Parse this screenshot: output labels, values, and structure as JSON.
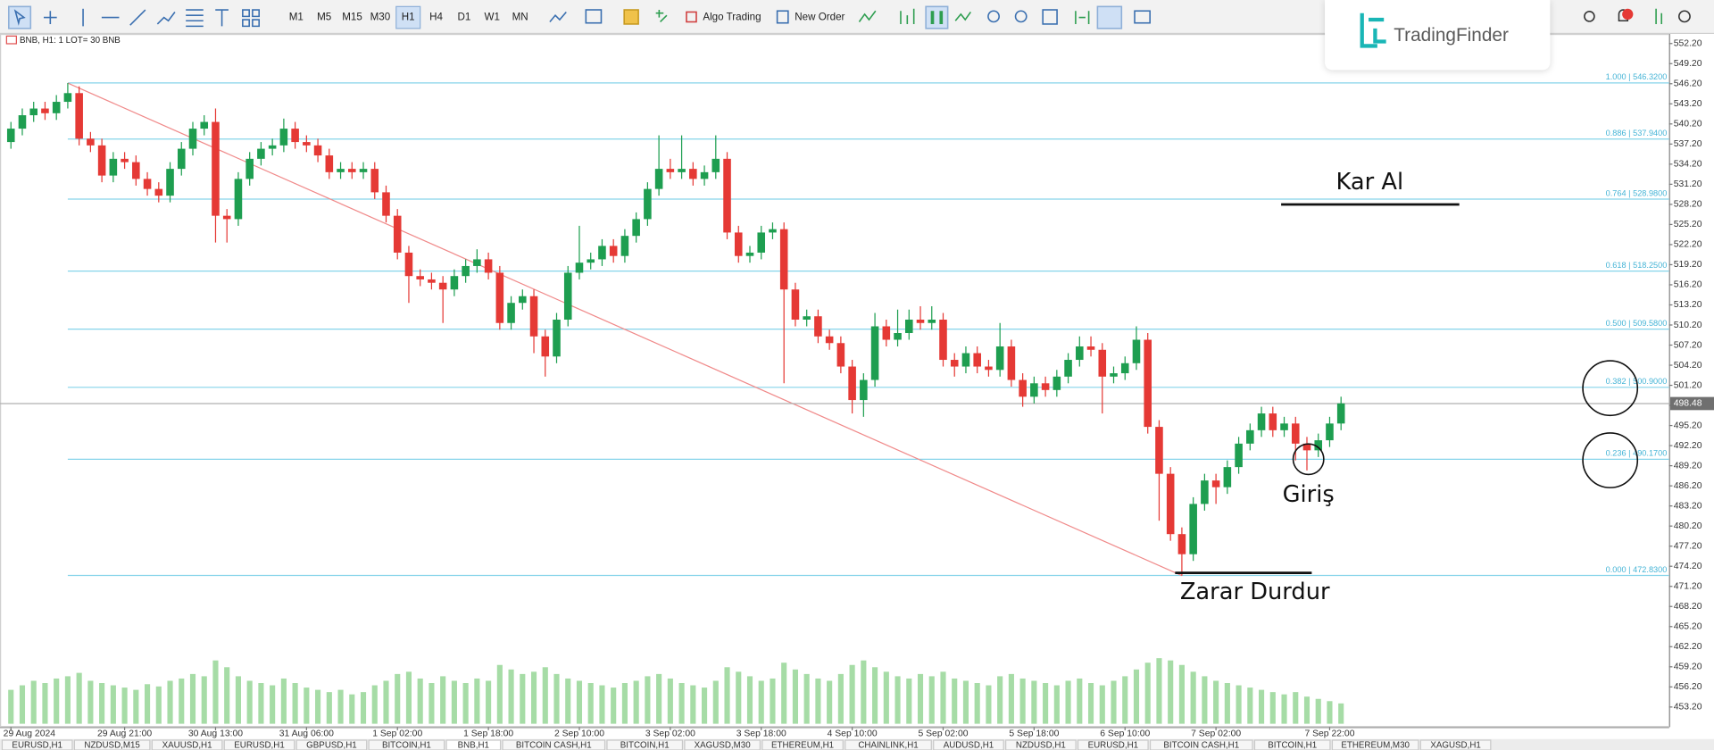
{
  "toolbar": {
    "timeframes": [
      "M1",
      "M5",
      "M15",
      "M30",
      "H1",
      "H4",
      "D1",
      "W1",
      "MN"
    ],
    "selected_timeframe": "H1",
    "algo_trading": "Algo Trading",
    "new_order": "New Order"
  },
  "logo": "TradingFinder",
  "tabs": [
    "EURUSD,H1",
    "NZDUSD,M15",
    "XAUUSD,H1",
    "EURUSD,H1",
    "GBPUSD,H1",
    "BITCOIN,H1",
    "BNB,H1",
    "BITCOIN CASH,H1",
    "BITCOIN,H1",
    "XAGUSD,M30",
    "ETHEREUM,H1",
    "CHAINLINK,H1",
    "AUDUSD,H1",
    "NZDUSD,H1",
    "EURUSD,H1",
    "BITCOIN CASH,H1",
    "BITCOIN,H1",
    "ETHEREUM,M30",
    "XAGUSD,H1"
  ],
  "annotations": {
    "take_profit": "Kar Al",
    "entry": "Giriş",
    "stop_loss": "Zarar Durdur"
  },
  "chart_data": {
    "type": "candlestick",
    "title": "BNB, H1: 1 LOT= 30 BNB",
    "categories": [
      "29 Aug 2024",
      null,
      null,
      null,
      null,
      null,
      null,
      null,
      null,
      null,
      "29 Aug 21:00",
      null,
      null,
      null,
      null,
      null,
      null,
      null,
      "30 Aug 13:00",
      null,
      null,
      null,
      null,
      null,
      null,
      null,
      "31 Aug 06:00",
      null,
      null,
      null,
      null,
      null,
      null,
      null,
      "1 Sep 02:00",
      null,
      null,
      null,
      null,
      null,
      null,
      null,
      "1 Sep 18:00",
      null,
      null,
      null,
      null,
      null,
      null,
      null,
      "2 Sep 10:00",
      null,
      null,
      null,
      null,
      null,
      null,
      null,
      "3 Sep 02:00",
      null,
      null,
      null,
      null,
      null,
      null,
      null,
      "3 Sep 18:00",
      null,
      null,
      null,
      null,
      null,
      null,
      null,
      "4 Sep 10:00",
      null,
      null,
      null,
      null,
      null,
      null,
      null,
      "5 Sep 02:00",
      null,
      null,
      null,
      null,
      null,
      null,
      null,
      "5 Sep 18:00",
      null,
      null,
      null,
      null,
      null,
      null,
      null,
      "6 Sep 10:00",
      null,
      null,
      null,
      null,
      null,
      null,
      null,
      "7 Sep 02:00",
      null,
      null,
      null,
      null,
      null,
      null,
      null,
      null,
      null,
      "7 Sep 22:00",
      null
    ],
    "open": [
      537.5,
      539.5,
      541.5,
      542.5,
      541.8,
      543.5,
      544.8,
      538,
      537,
      532.5,
      535,
      534.5,
      532,
      530.5,
      529.5,
      533.5,
      536.5,
      539.5,
      540.5,
      526.5,
      526,
      532,
      535,
      536.5,
      537,
      539.5,
      537.5,
      537,
      535.5,
      533,
      533.5,
      533,
      533.5,
      530,
      526.5,
      521,
      517.5,
      517,
      516.5,
      515.5,
      517.5,
      519,
      520,
      518,
      510.5,
      513.5,
      514.5,
      508.5,
      505.5,
      511,
      518,
      519.5,
      520,
      522,
      520.5,
      523.5,
      526,
      530.5,
      533.5,
      533,
      533.5,
      532,
      533,
      535,
      524,
      520.5,
      521,
      524,
      524.5,
      515.5,
      511,
      511.5,
      508.5,
      507.5,
      504,
      499,
      502,
      510,
      508,
      509,
      511,
      510.5,
      511,
      505,
      504,
      506,
      504,
      503.5,
      507,
      502,
      499.5,
      501.5,
      500.5,
      502.5,
      505,
      507,
      506.5,
      502.5,
      503,
      504.5,
      508,
      495,
      488,
      479,
      476,
      483.5,
      487,
      486,
      489,
      492.5,
      494.5,
      497,
      494.5,
      495.5,
      492.5,
      491.5,
      493,
      495.5
    ],
    "high": [
      540.5,
      542.5,
      543.5,
      543.5,
      544.5,
      546.3,
      545.8,
      539,
      538,
      536,
      536,
      535.5,
      533,
      531.5,
      534.5,
      537.5,
      540.5,
      541.5,
      542.5,
      527.5,
      533,
      536,
      537.5,
      538,
      541,
      540.5,
      538.5,
      538,
      536.5,
      534.5,
      534.5,
      534.5,
      534.5,
      531,
      527.5,
      522,
      518.5,
      518,
      517.5,
      518.5,
      520,
      521.5,
      521,
      519,
      514.5,
      515.5,
      515.5,
      509.5,
      512,
      519,
      525,
      521,
      523,
      523,
      524.5,
      527,
      531.5,
      538.5,
      535,
      538.5,
      534.5,
      534,
      538.5,
      536,
      525,
      522,
      525,
      525.5,
      525.5,
      516.5,
      512.5,
      512.5,
      509.5,
      508.5,
      505,
      503,
      512,
      511,
      512.5,
      512.5,
      513,
      513,
      512,
      506,
      507,
      507,
      505,
      510.5,
      508,
      503,
      502.5,
      502.5,
      503.5,
      506,
      508.5,
      508.5,
      507.5,
      504,
      505.5,
      510,
      509,
      496,
      489,
      480,
      484.5,
      488,
      488,
      490,
      493.5,
      495.5,
      498,
      498,
      496.5,
      496.5,
      493.5,
      494,
      496.5,
      499.5
    ],
    "low": [
      536.5,
      538.5,
      540.5,
      540.8,
      540.8,
      542.5,
      537,
      536,
      531.5,
      531.5,
      533.5,
      531,
      529.5,
      528.5,
      528.5,
      532.5,
      535.5,
      538.5,
      522.5,
      522.5,
      525,
      531,
      534,
      535.5,
      536,
      536.5,
      536,
      534.5,
      532,
      532,
      532,
      532,
      529,
      525.5,
      520,
      513.5,
      516,
      515.5,
      510.5,
      514.5,
      516.5,
      518,
      517,
      509.5,
      509.5,
      512.5,
      506,
      502.5,
      504.5,
      510,
      517,
      518.5,
      519,
      519.5,
      519.5,
      522.5,
      525,
      529.5,
      532,
      532,
      531,
      531,
      532,
      523,
      519.5,
      519.5,
      520,
      523,
      501.5,
      510,
      510,
      507.5,
      506.5,
      503,
      497,
      496.5,
      501,
      507,
      507,
      508,
      509.5,
      509.5,
      504,
      502.5,
      503,
      503,
      502.5,
      502.5,
      501,
      498,
      498.5,
      499.5,
      499.5,
      501.5,
      504,
      505.5,
      497,
      501.5,
      502,
      503.5,
      494,
      481,
      478,
      472.8,
      475,
      482.5,
      483.5,
      485,
      488,
      491.5,
      493.5,
      493.5,
      493.5,
      490,
      488.5,
      490.5,
      492,
      494.5
    ],
    "close": [
      539.5,
      541.5,
      542.5,
      541.8,
      543.5,
      544.8,
      538,
      537,
      532.5,
      535,
      534.5,
      532,
      530.5,
      529.5,
      533.5,
      536.5,
      539.5,
      540.5,
      526.5,
      526,
      532,
      535,
      536.5,
      537,
      539.5,
      537.5,
      537,
      535.5,
      533,
      533.5,
      533,
      533.5,
      530,
      526.5,
      521,
      517.5,
      517,
      516.5,
      515.5,
      517.5,
      519,
      520,
      518,
      510.5,
      513.5,
      514.5,
      508.5,
      505.5,
      511,
      518,
      519.5,
      520,
      522,
      520.5,
      523.5,
      526,
      530.5,
      533.5,
      533,
      533.5,
      532,
      533,
      535,
      524,
      520.5,
      521,
      524,
      524.5,
      515.5,
      511,
      511.5,
      508.5,
      507.5,
      504,
      499,
      502,
      510,
      508,
      509,
      511,
      510.5,
      511,
      505,
      504,
      506,
      504,
      503.5,
      507,
      502,
      499.5,
      501.5,
      500.5,
      502.5,
      505,
      507,
      506.5,
      502.5,
      503,
      504.5,
      508,
      495,
      488,
      479,
      476,
      483.5,
      487,
      486,
      489,
      492.5,
      494.5,
      497,
      494.5,
      495.5,
      492.5,
      491.5,
      493,
      495.5,
      498.5
    ],
    "volume": [
      30,
      34,
      38,
      36,
      40,
      42,
      45,
      38,
      36,
      34,
      32,
      30,
      35,
      33,
      38,
      40,
      44,
      42,
      56,
      50,
      42,
      38,
      36,
      34,
      40,
      36,
      32,
      30,
      28,
      30,
      26,
      28,
      34,
      38,
      44,
      46,
      40,
      36,
      42,
      38,
      36,
      40,
      38,
      52,
      48,
      44,
      46,
      50,
      44,
      40,
      38,
      36,
      34,
      32,
      36,
      38,
      42,
      44,
      40,
      36,
      34,
      32,
      38,
      50,
      46,
      42,
      38,
      40,
      54,
      48,
      44,
      40,
      38,
      44,
      52,
      56,
      50,
      46,
      42,
      40,
      44,
      42,
      46,
      40,
      38,
      36,
      34,
      42,
      44,
      40,
      38,
      36,
      34,
      38,
      40,
      36,
      34,
      38,
      42,
      48,
      54,
      58,
      56,
      52,
      46,
      42,
      38,
      36,
      34,
      32,
      30,
      28,
      26,
      28,
      24,
      22,
      20,
      18
    ],
    "ylim": [
      450.7,
      553.8
    ],
    "yticks": [
      {
        "value": 552.2,
        "label": "552.20"
      },
      {
        "value": 549.2,
        "label": "549.20"
      },
      {
        "value": 546.2,
        "label": "546.20"
      },
      {
        "value": 543.2,
        "label": "543.20"
      },
      {
        "value": 540.2,
        "label": "540.20"
      },
      {
        "value": 537.2,
        "label": "537.20"
      },
      {
        "value": 534.2,
        "label": "534.20"
      },
      {
        "value": 531.2,
        "label": "531.20"
      },
      {
        "value": 528.2,
        "label": "528.20"
      },
      {
        "value": 525.2,
        "label": "525.20"
      },
      {
        "value": 522.2,
        "label": "522.20"
      },
      {
        "value": 519.2,
        "label": "519.20"
      },
      {
        "value": 516.2,
        "label": "516.20"
      },
      {
        "value": 513.2,
        "label": "513.20"
      },
      {
        "value": 510.2,
        "label": "510.20"
      },
      {
        "value": 507.2,
        "label": "507.20"
      },
      {
        "value": 504.2,
        "label": "504.20"
      },
      {
        "value": 501.2,
        "label": "501.20"
      },
      {
        "value": 498.2,
        "label": "498.20"
      },
      {
        "value": 495.2,
        "label": "495.20"
      },
      {
        "value": 492.2,
        "label": "492.20"
      },
      {
        "value": 489.2,
        "label": "489.20"
      },
      {
        "value": 486.2,
        "label": "486.20"
      },
      {
        "value": 483.2,
        "label": "483.20"
      },
      {
        "value": 480.2,
        "label": "480.20"
      },
      {
        "value": 477.2,
        "label": "477.20"
      },
      {
        "value": 474.2,
        "label": "474.20"
      },
      {
        "value": 471.2,
        "label": "471.20"
      },
      {
        "value": 468.2,
        "label": "468.20"
      },
      {
        "value": 465.2,
        "label": "465.20"
      },
      {
        "value": 462.2,
        "label": "462.20"
      },
      {
        "value": 459.2,
        "label": "459.20"
      },
      {
        "value": 456.2,
        "label": "456.20"
      },
      {
        "value": 453.2,
        "label": "453.20"
      }
    ],
    "fib_levels": [
      {
        "value": 546.32,
        "label": "1.000 | 546.3200"
      },
      {
        "value": 537.94,
        "label": "0.886 | 537.9400"
      },
      {
        "value": 528.98,
        "label": "0.764 | 528.9800"
      },
      {
        "value": 518.25,
        "label": "0.618 | 518.2500"
      },
      {
        "value": 509.58,
        "label": "0.500 | 509.5800"
      },
      {
        "value": 500.9,
        "label": "0.382 | 500.9000"
      },
      {
        "value": 490.17,
        "label": "0.236 | 490.1700"
      },
      {
        "value": 472.83,
        "label": "0.000 | 472.8300"
      }
    ],
    "current_price": {
      "value": 498.48,
      "label": "498.48"
    },
    "colors": {
      "up": "#1e9e50",
      "down": "#e53935",
      "volume": "#a6dca6",
      "fib": "#86d4ea",
      "fib_text": "#45b4d6",
      "trend": "#f08a8a",
      "price_line": "#b0b0b0"
    },
    "grid": false
  }
}
